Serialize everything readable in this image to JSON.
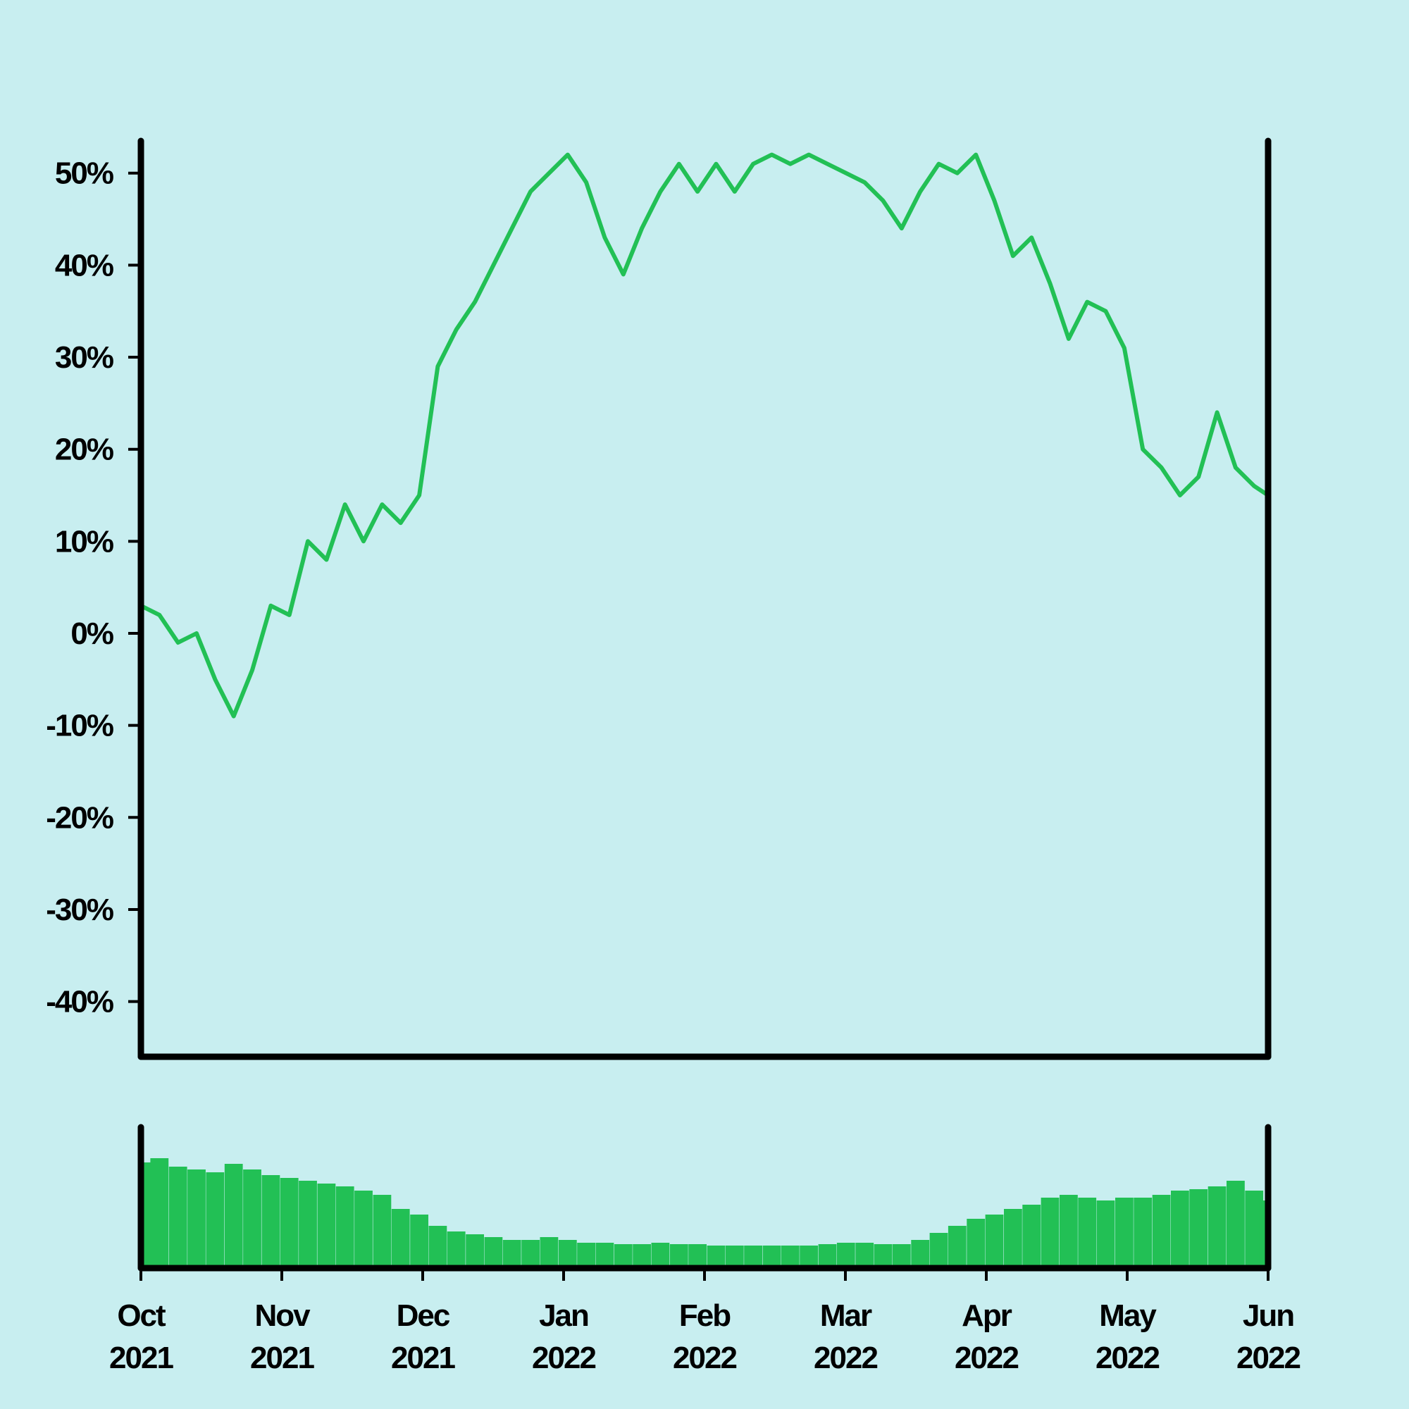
{
  "chart_data": [
    {
      "type": "line",
      "panel": "price",
      "title": "",
      "xlabel": "",
      "ylabel": "",
      "ylim": [
        -46,
        53.5
      ],
      "yticks": [
        50,
        40,
        30,
        20,
        10,
        0,
        -10,
        -20,
        -30,
        -40
      ],
      "ytick_labels": [
        "50%",
        "40%",
        "30%",
        "20%",
        "10%",
        "0%",
        "-10%",
        "-20%",
        "-30%",
        "-40%"
      ],
      "xlim": [
        "2021-10-01",
        "2022-06-01"
      ],
      "grid": false,
      "series_color": "#22c055",
      "series": [
        {
          "x": [
            "2021-10-01",
            "2021-10-05",
            "2021-10-09",
            "2021-10-13",
            "2021-10-17",
            "2021-10-21",
            "2021-10-25",
            "2021-10-29",
            "2021-11-02",
            "2021-11-06",
            "2021-11-10",
            "2021-11-14",
            "2021-11-18",
            "2021-11-22",
            "2021-11-26",
            "2021-11-30",
            "2021-12-04",
            "2021-12-08",
            "2021-12-12",
            "2021-12-16",
            "2021-12-20",
            "2021-12-24",
            "2021-12-28",
            "2022-01-01",
            "2022-01-05",
            "2022-01-09",
            "2022-01-13",
            "2022-01-17",
            "2022-01-21",
            "2022-01-25",
            "2022-01-29",
            "2022-02-02",
            "2022-02-06",
            "2022-02-10",
            "2022-02-14",
            "2022-02-18",
            "2022-02-22",
            "2022-02-26",
            "2022-03-02",
            "2022-03-06",
            "2022-03-10",
            "2022-03-14",
            "2022-03-18",
            "2022-03-22",
            "2022-03-26",
            "2022-03-30",
            "2022-04-03",
            "2022-04-07",
            "2022-04-11",
            "2022-04-15",
            "2022-04-19",
            "2022-04-23",
            "2022-04-27",
            "2022-05-01",
            "2022-05-05",
            "2022-05-09",
            "2022-05-13",
            "2022-05-17",
            "2022-05-21",
            "2022-05-25",
            "2022-05-29",
            "2022-06-01"
          ],
          "y": [
            3,
            2,
            -1,
            0,
            -5,
            -9,
            -4,
            3,
            2,
            10,
            8,
            14,
            10,
            14,
            12,
            15,
            29,
            33,
            36,
            40,
            44,
            48,
            50,
            52,
            49,
            43,
            39,
            44,
            48,
            51,
            48,
            51,
            48,
            51,
            52,
            51,
            52,
            51,
            50,
            49,
            47,
            44,
            48,
            51,
            50,
            52,
            47,
            41,
            43,
            38,
            32,
            36,
            35,
            31,
            20,
            18,
            15,
            17,
            24,
            18,
            16,
            15
          ]
        }
      ]
    },
    {
      "type": "bar",
      "panel": "volume",
      "title": "",
      "xlabel": "",
      "ylabel": "",
      "ylim": [
        0,
        1
      ],
      "xtick_labels": [
        {
          "month": "Oct",
          "year": "2021"
        },
        {
          "month": "Nov",
          "year": "2021"
        },
        {
          "month": "Dec",
          "year": "2021"
        },
        {
          "month": "Jan",
          "year": "2022"
        },
        {
          "month": "Feb",
          "year": "2022"
        },
        {
          "month": "Mar",
          "year": "2022"
        },
        {
          "month": "Apr",
          "year": "2022"
        },
        {
          "month": "May",
          "year": "2022"
        },
        {
          "month": "Jun",
          "year": "2022"
        }
      ],
      "grid": false,
      "series_color": "#22c055",
      "series": [
        {
          "x": [
            "2021-10-01",
            "2021-10-05",
            "2021-10-09",
            "2021-10-13",
            "2021-10-17",
            "2021-10-21",
            "2021-10-25",
            "2021-10-29",
            "2021-11-02",
            "2021-11-06",
            "2021-11-10",
            "2021-11-14",
            "2021-11-18",
            "2021-11-22",
            "2021-11-26",
            "2021-11-30",
            "2021-12-04",
            "2021-12-08",
            "2021-12-12",
            "2021-12-16",
            "2021-12-20",
            "2021-12-24",
            "2021-12-28",
            "2022-01-01",
            "2022-01-05",
            "2022-01-09",
            "2022-01-13",
            "2022-01-17",
            "2022-01-21",
            "2022-01-25",
            "2022-01-29",
            "2022-02-02",
            "2022-02-06",
            "2022-02-10",
            "2022-02-14",
            "2022-02-18",
            "2022-02-22",
            "2022-02-26",
            "2022-03-02",
            "2022-03-06",
            "2022-03-10",
            "2022-03-14",
            "2022-03-18",
            "2022-03-22",
            "2022-03-26",
            "2022-03-30",
            "2022-04-03",
            "2022-04-07",
            "2022-04-11",
            "2022-04-15",
            "2022-04-19",
            "2022-04-23",
            "2022-04-27",
            "2022-05-01",
            "2022-05-05",
            "2022-05-09",
            "2022-05-13",
            "2022-05-17",
            "2022-05-21",
            "2022-05-25",
            "2022-05-29",
            "2022-06-01"
          ],
          "values": [
            0.75,
            0.78,
            0.72,
            0.7,
            0.68,
            0.74,
            0.7,
            0.66,
            0.64,
            0.62,
            0.6,
            0.58,
            0.55,
            0.52,
            0.42,
            0.38,
            0.3,
            0.26,
            0.24,
            0.22,
            0.2,
            0.2,
            0.22,
            0.2,
            0.18,
            0.18,
            0.17,
            0.17,
            0.18,
            0.17,
            0.17,
            0.16,
            0.16,
            0.16,
            0.16,
            0.16,
            0.16,
            0.17,
            0.18,
            0.18,
            0.17,
            0.17,
            0.2,
            0.25,
            0.3,
            0.35,
            0.38,
            0.42,
            0.45,
            0.5,
            0.52,
            0.5,
            0.48,
            0.5,
            0.5,
            0.52,
            0.55,
            0.56,
            0.58,
            0.62,
            0.55,
            0.48
          ]
        }
      ]
    }
  ]
}
